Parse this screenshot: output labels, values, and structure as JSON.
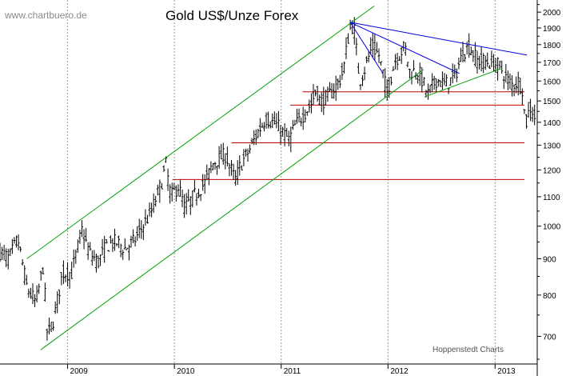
{
  "chart_data": {
    "type": "ohlc",
    "title": "Gold US$/Unze Forex",
    "watermark": "www.chartbuero.de",
    "credit": "Hoppenstedt Charts",
    "y_scale": "log",
    "ylim": [
      640,
      2080
    ],
    "y_ticks": [
      700,
      800,
      900,
      1000,
      1100,
      1200,
      1300,
      1400,
      1500,
      1600,
      1700,
      1800,
      1900,
      2000
    ],
    "x_range": [
      "2008-05-15",
      "2013-05-25"
    ],
    "x_ticks": [
      {
        "label": "2009",
        "date": "2009-01-01"
      },
      {
        "label": "2010",
        "date": "2010-01-01"
      },
      {
        "label": "2011",
        "date": "2011-01-01"
      },
      {
        "label": "2012",
        "date": "2012-01-01"
      },
      {
        "label": "2013",
        "date": "2013-01-01"
      }
    ],
    "grid": "vertical-dashed",
    "price_path": [
      [
        "2008-05-15",
        920
      ],
      [
        "2008-06-15",
        900
      ],
      [
        "2008-07-15",
        960
      ],
      [
        "2008-08-15",
        820
      ],
      [
        "2008-09-15",
        780
      ],
      [
        "2008-10-10",
        880
      ],
      [
        "2008-10-24",
        700
      ],
      [
        "2008-11-15",
        740
      ],
      [
        "2008-12-15",
        860
      ],
      [
        "2009-01-15",
        860
      ],
      [
        "2009-02-20",
        990
      ],
      [
        "2009-03-15",
        920
      ],
      [
        "2009-04-15",
        890
      ],
      [
        "2009-05-15",
        940
      ],
      [
        "2009-06-15",
        950
      ],
      [
        "2009-07-15",
        930
      ],
      [
        "2009-08-15",
        950
      ],
      [
        "2009-09-15",
        1000
      ],
      [
        "2009-10-15",
        1050
      ],
      [
        "2009-11-15",
        1140
      ],
      [
        "2009-12-03",
        1220
      ],
      [
        "2009-12-20",
        1100
      ],
      [
        "2010-01-15",
        1140
      ],
      [
        "2010-02-05",
        1060
      ],
      [
        "2010-03-15",
        1110
      ],
      [
        "2010-04-15",
        1150
      ],
      [
        "2010-05-15",
        1230
      ],
      [
        "2010-06-25",
        1260
      ],
      [
        "2010-07-28",
        1160
      ],
      [
        "2010-08-15",
        1220
      ],
      [
        "2010-09-15",
        1280
      ],
      [
        "2010-10-15",
        1360
      ],
      [
        "2010-11-10",
        1420
      ],
      [
        "2010-12-15",
        1390
      ],
      [
        "2011-01-28",
        1320
      ],
      [
        "2011-02-15",
        1380
      ],
      [
        "2011-03-15",
        1430
      ],
      [
        "2011-04-15",
        1490
      ],
      [
        "2011-05-02",
        1560
      ],
      [
        "2011-05-15",
        1490
      ],
      [
        "2011-06-15",
        1530
      ],
      [
        "2011-07-15",
        1590
      ],
      [
        "2011-08-01",
        1650
      ],
      [
        "2011-08-22",
        1890
      ],
      [
        "2011-09-06",
        1920
      ],
      [
        "2011-09-26",
        1600
      ],
      [
        "2011-10-15",
        1670
      ],
      [
        "2011-11-08",
        1790
      ],
      [
        "2011-12-01",
        1740
      ],
      [
        "2011-12-29",
        1540
      ],
      [
        "2012-01-25",
        1710
      ],
      [
        "2012-02-28",
        1790
      ],
      [
        "2012-03-15",
        1650
      ],
      [
        "2012-04-15",
        1650
      ],
      [
        "2012-05-16",
        1530
      ],
      [
        "2012-06-15",
        1610
      ],
      [
        "2012-07-15",
        1580
      ],
      [
        "2012-08-15",
        1620
      ],
      [
        "2012-09-15",
        1760
      ],
      [
        "2012-10-04",
        1790
      ],
      [
        "2012-11-01",
        1710
      ],
      [
        "2012-12-15",
        1700
      ],
      [
        "2013-01-15",
        1680
      ],
      [
        "2013-02-15",
        1600
      ],
      [
        "2013-03-01",
        1580
      ],
      [
        "2013-03-20",
        1600
      ],
      [
        "2013-04-05",
        1560
      ],
      [
        "2013-04-15",
        1380
      ],
      [
        "2013-04-22",
        1430
      ],
      [
        "2013-05-01",
        1470
      ],
      [
        "2013-05-15",
        1440
      ],
      [
        "2013-05-20",
        1370
      ]
    ],
    "trend_lines": [
      {
        "color": "#00a000",
        "from": [
          "2008-10-01",
          670
        ],
        "to": [
          "2012-05-01",
          1660
        ]
      },
      {
        "color": "#00a000",
        "from": [
          "2008-08-15",
          900
        ],
        "to": [
          "2011-11-15",
          2040
        ]
      },
      {
        "color": "#00a000",
        "from": [
          "2012-05-05",
          1520
        ],
        "to": [
          "2013-01-20",
          1665
        ]
      },
      {
        "color": "#0000e0",
        "from": [
          "2011-08-25",
          1935
        ],
        "to": [
          "2013-04-20",
          1740
        ]
      },
      {
        "color": "#0000e0",
        "from": [
          "2011-08-25",
          1935
        ],
        "to": [
          "2012-09-01",
          1640
        ]
      },
      {
        "color": "#0000e0",
        "from": [
          "2011-08-25",
          1935
        ],
        "to": [
          "2011-12-15",
          1640
        ]
      }
    ],
    "horizontal_lines": [
      {
        "color": "#c00000",
        "value": 1545,
        "from": "2011-03-15"
      },
      {
        "color": "#c00000",
        "value": 1480,
        "from": "2011-02-01"
      },
      {
        "color": "#c00000",
        "value": 1310,
        "from": "2010-07-15"
      },
      {
        "color": "#c00000",
        "value": 1163,
        "from": "2009-12-25"
      }
    ]
  }
}
